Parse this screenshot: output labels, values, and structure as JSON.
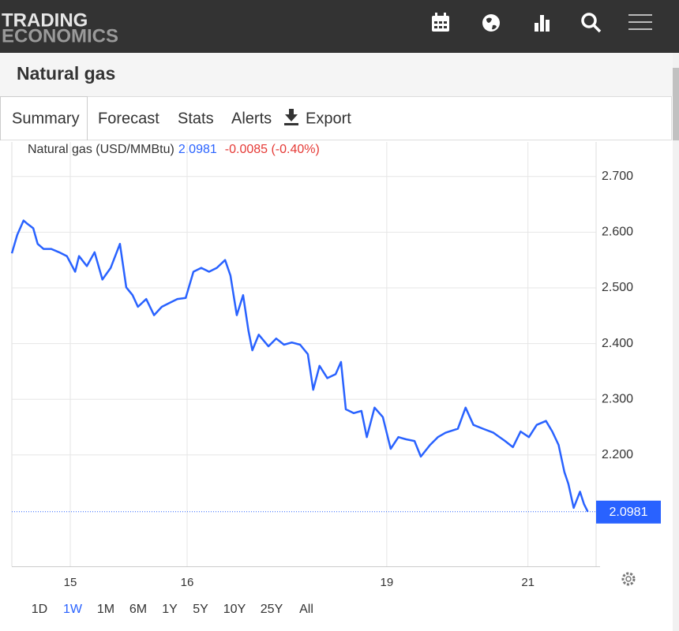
{
  "header": {
    "logo_top": "TRADING",
    "logo_bottom": "ECONOMICS"
  },
  "page_title": "Natural gas",
  "tabs": [
    "Summary",
    "Forecast",
    "Stats",
    "Alerts",
    "Export"
  ],
  "ranges": [
    "1D",
    "1W",
    "1M",
    "6M",
    "1Y",
    "5Y",
    "10Y",
    "25Y",
    "All"
  ],
  "active_range": "1W",
  "chart_data": {
    "type": "line",
    "price": 2.0981,
    "change": "-0.0085 (-0.40%)",
    "price_color": "#2962ff",
    "change_color": "#e53935",
    "x": [
      0,
      1.1,
      2.4,
      3.2,
      4.4,
      5.3,
      6.5,
      8.1,
      9.7,
      11.3,
      13.0,
      13.8,
      15.4,
      17.0,
      18.6,
      20.3,
      22.2,
      23.5,
      24.8,
      25.9,
      27.6,
      29.2,
      30.8,
      32.4,
      34.0,
      35.7,
      37.3,
      38.9,
      40.5,
      42.1,
      43.8,
      44.9,
      46.2,
      47.5,
      48.6,
      49.4,
      50.7,
      52.7,
      54.3,
      55.9,
      57.5,
      59.2,
      60.8,
      61.9,
      63.2,
      64.8,
      66.5,
      67.6,
      68.6,
      70.2,
      71.8,
      72.9,
      74.5,
      76.2,
      77.8,
      79.4,
      81.0,
      82.7,
      84.0,
      85.9,
      87.5,
      89.1,
      91.6,
      93.2,
      94.8,
      96.8,
      98.9,
      101.3,
      102.9,
      104.5,
      106.2,
      107.8,
      109.7,
      111.0,
      112.3,
      113.5,
      114.3,
      115.4,
      116.7,
      117.5,
      118.3
    ],
    "series": [
      {
        "name": "Natural gas (USD/MMBtu)",
        "color": "#2962ff",
        "values": [
          2.562,
          2.595,
          2.621,
          2.615,
          2.607,
          2.579,
          2.57,
          2.57,
          2.564,
          2.557,
          2.529,
          2.557,
          2.539,
          2.564,
          2.515,
          2.536,
          2.579,
          2.501,
          2.487,
          2.466,
          2.48,
          2.451,
          2.466,
          2.473,
          2.48,
          2.482,
          2.529,
          2.536,
          2.529,
          2.536,
          2.55,
          2.522,
          2.451,
          2.487,
          2.423,
          2.388,
          2.416,
          2.395,
          2.409,
          2.398,
          2.402,
          2.398,
          2.381,
          2.317,
          2.36,
          2.338,
          2.345,
          2.367,
          2.282,
          2.275,
          2.279,
          2.232,
          2.285,
          2.268,
          2.211,
          2.232,
          2.228,
          2.225,
          2.197,
          2.218,
          2.232,
          2.24,
          2.247,
          2.285,
          2.254,
          2.247,
          2.24,
          2.225,
          2.214,
          2.242,
          2.232,
          2.254,
          2.261,
          2.242,
          2.218,
          2.169,
          2.148,
          2.105,
          2.134,
          2.112,
          2.098
        ]
      }
    ],
    "xlim": [
      0,
      120
    ],
    "xticks": [
      {
        "value": 12,
        "label": "15"
      },
      {
        "value": 36,
        "label": "16"
      },
      {
        "value": 77,
        "label": "19"
      },
      {
        "value": 106,
        "label": "21"
      }
    ],
    "ylim": [
      2.0,
      2.762
    ],
    "yticks": [
      {
        "value": 2.2,
        "label": "2.200"
      },
      {
        "value": 2.3,
        "label": "2.300"
      },
      {
        "value": 2.4,
        "label": "2.400"
      },
      {
        "value": 2.5,
        "label": "2.500"
      },
      {
        "value": 2.6,
        "label": "2.600"
      },
      {
        "value": 2.7,
        "label": "2.700"
      }
    ],
    "grid": true
  }
}
